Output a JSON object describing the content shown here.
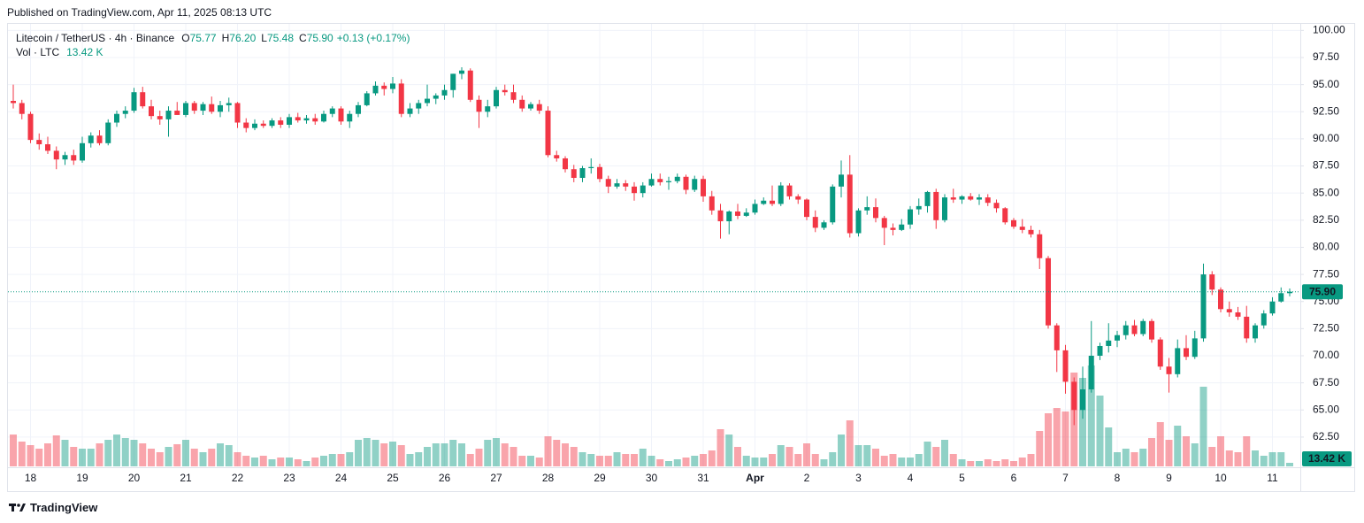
{
  "published": "Published on TradingView.com, Apr 11, 2025 08:13 UTC",
  "brand": "TradingView",
  "chart_data": {
    "type": "candlestick",
    "legend": {
      "title": "Litecoin / TetherUS · 4h · Binance",
      "fields": [
        {
          "key": "O",
          "text": "75.77"
        },
        {
          "key": "H",
          "text": "76.20"
        },
        {
          "key": "L",
          "text": "75.48"
        },
        {
          "key": "C",
          "text": "75.90"
        }
      ],
      "change": "+0.13 (+0.17%)",
      "volume_title": "Vol · LTC",
      "volume_text": "13.42 K"
    },
    "last_price_label": "75.90",
    "up_color": "#089981",
    "down_color": "#f23645",
    "grid": true,
    "categories": [
      null,
      null,
      "18",
      null,
      null,
      null,
      null,
      null,
      "19",
      null,
      null,
      null,
      null,
      null,
      "20",
      null,
      null,
      null,
      null,
      null,
      "21",
      null,
      null,
      null,
      null,
      null,
      "22",
      null,
      null,
      null,
      null,
      null,
      "23",
      null,
      null,
      null,
      null,
      null,
      "24",
      null,
      null,
      null,
      null,
      null,
      "25",
      null,
      null,
      null,
      null,
      null,
      "26",
      null,
      null,
      null,
      null,
      null,
      "27",
      null,
      null,
      null,
      null,
      null,
      "28",
      null,
      null,
      null,
      null,
      null,
      "29",
      null,
      null,
      null,
      null,
      null,
      "30",
      null,
      null,
      null,
      null,
      null,
      "31",
      null,
      null,
      null,
      null,
      null,
      "Apr",
      null,
      null,
      null,
      null,
      null,
      "2",
      null,
      null,
      null,
      null,
      null,
      "3",
      null,
      null,
      null,
      null,
      null,
      "4",
      null,
      null,
      null,
      null,
      null,
      "5",
      null,
      null,
      null,
      null,
      null,
      "6",
      null,
      null,
      null,
      null,
      null,
      "7",
      null,
      null,
      null,
      null,
      null,
      "8",
      null,
      null,
      null,
      null,
      null,
      "9",
      null,
      null,
      null,
      null,
      null,
      "10",
      null,
      null,
      null,
      null,
      null,
      "11",
      null,
      null
    ],
    "open": [
      93.5,
      93.3,
      92.3,
      89.9,
      89.5,
      88.9,
      88.1,
      88.5,
      88.0,
      89.6,
      90.3,
      89.6,
      91.5,
      92.3,
      92.6,
      94.3,
      93.0,
      92.1,
      91.8,
      92.6,
      92.2,
      93.3,
      92.6,
      93.2,
      92.5,
      93.1,
      93.3,
      91.5,
      91.0,
      91.4,
      91.2,
      91.7,
      91.3,
      92.0,
      91.7,
      91.9,
      91.6,
      92.3,
      92.8,
      91.6,
      92.3,
      93.1,
      94.2,
      94.9,
      94.6,
      95.1,
      92.3,
      92.8,
      93.3,
      93.7,
      94.0,
      94.5,
      96.0,
      96.3,
      93.6,
      92.5,
      93.0,
      94.5,
      94.3,
      93.6,
      92.8,
      93.2,
      92.6,
      88.5,
      88.2,
      87.2,
      86.4,
      87.3,
      87.4,
      86.3,
      85.6,
      85.9,
      85.6,
      85.0,
      85.7,
      86.3,
      86.0,
      86.1,
      86.5,
      85.3,
      86.3,
      84.7,
      83.4,
      82.4,
      83.3,
      82.9,
      83.2,
      84.0,
      84.3,
      84.0,
      85.7,
      84.7,
      84.4,
      82.8,
      81.8,
      82.3,
      85.6,
      86.7,
      81.3,
      83.4,
      83.7,
      82.7,
      81.8,
      81.6,
      82.1,
      83.5,
      83.8,
      85.1,
      82.5,
      84.6,
      84.4,
      84.7,
      84.4,
      84.6,
      84.1,
      83.6,
      82.5,
      81.9,
      81.6,
      81.2,
      79.0,
      72.8,
      70.5,
      67.6,
      65.0,
      66.9,
      70.0,
      70.9,
      71.4,
      71.9,
      72.8,
      72.0,
      73.2,
      71.5,
      69.0,
      68.3,
      70.7,
      69.9,
      71.6,
      77.5,
      76.1,
      74.3,
      74.0,
      73.6,
      71.6,
      72.8,
      73.9,
      75.0,
      75.77
    ],
    "high": [
      95.0,
      93.6,
      92.5,
      90.5,
      90.2,
      89.3,
      88.8,
      89.0,
      90.2,
      90.6,
      90.8,
      91.8,
      92.6,
      93.0,
      94.7,
      94.8,
      93.6,
      92.6,
      93.0,
      93.4,
      93.5,
      93.5,
      93.4,
      93.9,
      93.5,
      93.8,
      93.4,
      91.9,
      91.8,
      91.7,
      91.9,
      92.0,
      92.3,
      92.4,
      92.2,
      92.3,
      92.6,
      93.0,
      93.0,
      92.6,
      93.4,
      94.4,
      95.3,
      95.2,
      95.7,
      95.5,
      93.3,
      93.6,
      95.0,
      94.2,
      95.0,
      96.0,
      96.6,
      96.5,
      94.0,
      93.6,
      94.8,
      95.0,
      95.0,
      94.0,
      93.4,
      93.6,
      93.0,
      88.9,
      88.4,
      87.6,
      87.5,
      88.2,
      87.7,
      86.6,
      86.3,
      86.2,
      86.0,
      86.0,
      86.8,
      86.8,
      86.5,
      86.8,
      86.7,
      86.6,
      86.6,
      85.2,
      84.0,
      83.4,
      84.0,
      83.6,
      84.4,
      84.6,
      85.7,
      86.0,
      85.9,
      84.9,
      84.5,
      83.4,
      82.5,
      85.8,
      88.0,
      88.5,
      83.6,
      84.7,
      84.5,
      82.9,
      82.2,
      82.6,
      83.8,
      84.5,
      85.2,
      85.4,
      84.9,
      85.4,
      84.8,
      85.0,
      84.9,
      84.9,
      84.4,
      83.7,
      82.7,
      82.6,
      82.0,
      81.6,
      79.2,
      73.0,
      71.0,
      68.0,
      69.0,
      73.2,
      71.2,
      73.0,
      72.3,
      73.2,
      73.3,
      73.4,
      73.4,
      71.7,
      69.8,
      71.5,
      71.9,
      72.3,
      78.5,
      77.8,
      76.3,
      75.0,
      74.5,
      74.6,
      73.0,
      74.2,
      75.4,
      76.3,
      76.2
    ],
    "low": [
      92.8,
      91.8,
      89.6,
      89.0,
      88.6,
      87.2,
      87.6,
      87.6,
      87.8,
      89.2,
      89.4,
      89.4,
      91.1,
      91.9,
      92.4,
      92.8,
      91.8,
      91.3,
      90.2,
      92.2,
      92.0,
      92.3,
      92.2,
      92.3,
      92.0,
      92.5,
      91.0,
      90.6,
      90.8,
      91.0,
      91.0,
      91.0,
      91.0,
      91.5,
      91.4,
      91.3,
      91.5,
      92.0,
      91.3,
      91.0,
      92.0,
      93.0,
      94.0,
      94.0,
      94.2,
      92.0,
      92.0,
      92.3,
      93.0,
      93.2,
      93.6,
      93.8,
      95.5,
      93.4,
      91.0,
      92.0,
      92.8,
      94.0,
      93.3,
      92.5,
      92.6,
      92.3,
      88.3,
      87.9,
      86.9,
      86.0,
      86.0,
      86.8,
      86.0,
      85.0,
      85.4,
      85.2,
      84.3,
      84.6,
      85.6,
      85.7,
      85.3,
      85.9,
      84.9,
      85.1,
      84.2,
      83.0,
      80.8,
      81.2,
      82.6,
      82.8,
      83.0,
      83.9,
      83.8,
      83.8,
      84.4,
      84.0,
      82.5,
      81.4,
      81.6,
      82.1,
      84.6,
      80.9,
      81.0,
      83.0,
      82.3,
      80.2,
      81.1,
      81.5,
      81.7,
      83.0,
      83.2,
      81.7,
      82.3,
      84.1,
      84.0,
      84.3,
      83.9,
      83.8,
      83.2,
      82.1,
      81.7,
      81.3,
      80.9,
      78.0,
      72.5,
      68.5,
      66.5,
      63.6,
      64.2,
      66.6,
      69.6,
      70.3,
      70.8,
      71.5,
      71.8,
      71.8,
      71.2,
      68.7,
      66.6,
      68.0,
      69.6,
      69.7,
      71.3,
      75.6,
      74.0,
      73.6,
      73.3,
      71.2,
      71.2,
      72.5,
      73.7,
      74.9,
      75.48
    ],
    "close": [
      93.3,
      92.3,
      89.9,
      89.5,
      88.9,
      88.1,
      88.5,
      88.0,
      89.6,
      90.3,
      89.6,
      91.5,
      92.3,
      92.6,
      94.3,
      93.0,
      92.1,
      91.8,
      92.6,
      92.2,
      93.3,
      92.6,
      93.2,
      92.5,
      93.1,
      93.3,
      91.5,
      91.0,
      91.4,
      91.2,
      91.7,
      91.3,
      92.0,
      91.7,
      91.9,
      91.6,
      92.3,
      92.8,
      91.6,
      92.3,
      93.1,
      94.2,
      94.9,
      94.6,
      95.1,
      92.3,
      92.8,
      93.3,
      93.7,
      94.0,
      94.5,
      96.0,
      96.3,
      93.6,
      92.5,
      93.0,
      94.5,
      94.3,
      93.6,
      92.8,
      93.2,
      92.6,
      88.5,
      88.2,
      87.2,
      86.4,
      87.3,
      87.4,
      86.3,
      85.6,
      85.9,
      85.6,
      85.0,
      85.7,
      86.3,
      86.0,
      86.1,
      86.5,
      85.3,
      86.3,
      84.7,
      83.4,
      82.4,
      83.3,
      82.9,
      83.2,
      84.0,
      84.3,
      84.0,
      85.7,
      84.7,
      84.4,
      82.8,
      81.8,
      82.3,
      85.6,
      86.7,
      81.3,
      83.4,
      83.7,
      82.7,
      81.8,
      81.6,
      82.1,
      83.5,
      83.8,
      85.1,
      82.5,
      84.6,
      84.4,
      84.7,
      84.4,
      84.6,
      84.1,
      83.6,
      82.3,
      81.9,
      81.6,
      81.2,
      79.0,
      72.8,
      70.5,
      67.6,
      65.0,
      66.9,
      70.0,
      70.9,
      71.4,
      71.9,
      72.8,
      72.0,
      73.2,
      71.5,
      69.0,
      68.3,
      70.7,
      69.9,
      71.6,
      77.5,
      76.1,
      74.3,
      74.0,
      73.6,
      71.6,
      72.8,
      73.9,
      75.0,
      75.77,
      75.9
    ],
    "volume": [
      120600,
      93800,
      80400,
      67000,
      87100,
      117300,
      100500,
      73700,
      67000,
      67000,
      87100,
      100500,
      120600,
      107200,
      100500,
      87100,
      67000,
      53600,
      73700,
      83800,
      100500,
      67000,
      53600,
      67000,
      87100,
      80400,
      53600,
      40200,
      33500,
      40200,
      26800,
      33500,
      33500,
      26800,
      20100,
      33500,
      40200,
      46900,
      46900,
      53600,
      100500,
      107200,
      100500,
      87100,
      93800,
      80400,
      46900,
      53600,
      73700,
      87100,
      87100,
      100500,
      87100,
      46900,
      67000,
      100500,
      107200,
      87100,
      73700,
      40200,
      40200,
      33500,
      113900,
      100500,
      87100,
      73700,
      53600,
      46900,
      40200,
      40200,
      53600,
      46900,
      46900,
      67000,
      40200,
      26800,
      20100,
      26800,
      33500,
      40200,
      46900,
      60300,
      140700,
      120600,
      73700,
      40200,
      33500,
      33500,
      46900,
      80400,
      73700,
      46900,
      87100,
      46900,
      26800,
      53600,
      120600,
      174200,
      80400,
      80400,
      67000,
      40200,
      46900,
      33500,
      33500,
      46900,
      93800,
      73700,
      100500,
      46900,
      26800,
      20100,
      20100,
      26800,
      20100,
      26800,
      20100,
      33500,
      46900,
      134000,
      201000,
      221100,
      207700,
      355100,
      335000,
      381900,
      268000,
      147400,
      53600,
      67000,
      53600,
      67000,
      107200,
      167500,
      100500,
      154100,
      113900,
      87100,
      301500,
      73700,
      113900,
      60300,
      53600,
      113900,
      60300,
      40200,
      53600,
      53600,
      13420
    ],
    "ylim": [
      59.8,
      100.6
    ],
    "yticks": [
      {
        "value": 62.5,
        "label": "62.50"
      },
      {
        "value": 65,
        "label": "65.00"
      },
      {
        "value": 67.5,
        "label": "67.50"
      },
      {
        "value": 70,
        "label": "70.00"
      },
      {
        "value": 72.5,
        "label": "72.50"
      },
      {
        "value": 75,
        "label": "75.00"
      },
      {
        "value": 77.5,
        "label": "77.50"
      },
      {
        "value": 80,
        "label": "80.00"
      },
      {
        "value": 82.5,
        "label": "82.50"
      },
      {
        "value": 85,
        "label": "85.00"
      },
      {
        "value": 87.5,
        "label": "87.50"
      },
      {
        "value": 90,
        "label": "90.00"
      },
      {
        "value": 92.5,
        "label": "92.50"
      },
      {
        "value": 95,
        "label": "95.00"
      },
      {
        "value": 97.5,
        "label": "97.50"
      },
      {
        "value": 100,
        "label": "100.00"
      }
    ]
  }
}
